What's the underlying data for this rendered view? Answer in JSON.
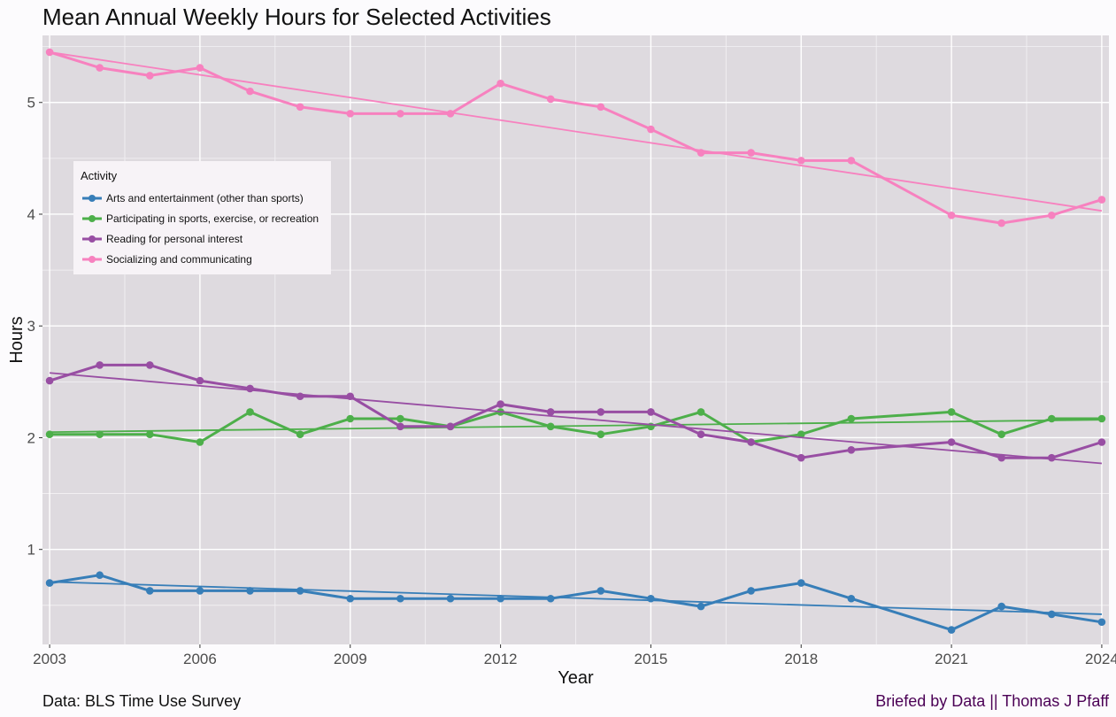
{
  "chart_data": {
    "type": "line",
    "title": "Mean Annual Weekly Hours for Selected Activities",
    "xlabel": "Year",
    "ylabel": "Hours",
    "xlim": [
      2003,
      2024
    ],
    "ylim": [
      0.15,
      5.6
    ],
    "x_ticks": [
      2003,
      2006,
      2009,
      2012,
      2015,
      2018,
      2021,
      2024
    ],
    "y_ticks": [
      1,
      2,
      3,
      4,
      5
    ],
    "grid": true,
    "legend_title": "Activity",
    "legend_position": "top-left",
    "trend_lines": "linear fit per series",
    "series": [
      {
        "name": "Arts and entertainment (other than sports)",
        "color": "#377eb8",
        "points": [
          [
            2003,
            0.7
          ],
          [
            2004,
            0.77
          ],
          [
            2005,
            0.63
          ],
          [
            2006,
            0.63
          ],
          [
            2007,
            0.63
          ],
          [
            2008,
            0.63
          ],
          [
            2009,
            0.56
          ],
          [
            2010,
            0.56
          ],
          [
            2011,
            0.56
          ],
          [
            2012,
            0.56
          ],
          [
            2013,
            0.56
          ],
          [
            2014,
            0.63
          ],
          [
            2015,
            0.56
          ],
          [
            2016,
            0.49
          ],
          [
            2017,
            0.63
          ],
          [
            2018,
            0.7
          ],
          [
            2019,
            0.56
          ],
          [
            2021,
            0.28
          ],
          [
            2022,
            0.49
          ],
          [
            2023,
            0.42
          ],
          [
            2024,
            0.35
          ]
        ],
        "trend": [
          0.71,
          0.42
        ]
      },
      {
        "name": "Participating in sports, exercise, or recreation",
        "color": "#4daf4a",
        "points": [
          [
            2003,
            2.03
          ],
          [
            2004,
            2.03
          ],
          [
            2005,
            2.03
          ],
          [
            2006,
            1.96
          ],
          [
            2007,
            2.23
          ],
          [
            2008,
            2.03
          ],
          [
            2009,
            2.17
          ],
          [
            2010,
            2.17
          ],
          [
            2011,
            2.1
          ],
          [
            2012,
            2.23
          ],
          [
            2013,
            2.1
          ],
          [
            2014,
            2.03
          ],
          [
            2015,
            2.1
          ],
          [
            2016,
            2.23
          ],
          [
            2017,
            1.96
          ],
          [
            2018,
            2.03
          ],
          [
            2019,
            2.17
          ],
          [
            2021,
            2.23
          ],
          [
            2022,
            2.03
          ],
          [
            2023,
            2.17
          ],
          [
            2024,
            2.17
          ]
        ],
        "trend": [
          2.05,
          2.16
        ]
      },
      {
        "name": "Reading for personal interest",
        "color": "#984ea3",
        "points": [
          [
            2003,
            2.51
          ],
          [
            2004,
            2.65
          ],
          [
            2005,
            2.65
          ],
          [
            2006,
            2.51
          ],
          [
            2007,
            2.44
          ],
          [
            2008,
            2.37
          ],
          [
            2009,
            2.37
          ],
          [
            2010,
            2.1
          ],
          [
            2011,
            2.1
          ],
          [
            2012,
            2.3
          ],
          [
            2013,
            2.23
          ],
          [
            2014,
            2.23
          ],
          [
            2015,
            2.23
          ],
          [
            2016,
            2.03
          ],
          [
            2017,
            1.96
          ],
          [
            2018,
            1.82
          ],
          [
            2019,
            1.89
          ],
          [
            2021,
            1.96
          ],
          [
            2022,
            1.82
          ],
          [
            2023,
            1.82
          ],
          [
            2024,
            1.96
          ]
        ],
        "trend": [
          2.58,
          1.77
        ]
      },
      {
        "name": "Socializing and communicating",
        "color": "#f781bf",
        "points": [
          [
            2003,
            5.45
          ],
          [
            2004,
            5.31
          ],
          [
            2005,
            5.24
          ],
          [
            2006,
            5.31
          ],
          [
            2007,
            5.1
          ],
          [
            2008,
            4.96
          ],
          [
            2009,
            4.9
          ],
          [
            2010,
            4.9
          ],
          [
            2011,
            4.9
          ],
          [
            2012,
            5.17
          ],
          [
            2013,
            5.03
          ],
          [
            2014,
            4.96
          ],
          [
            2015,
            4.76
          ],
          [
            2016,
            4.55
          ],
          [
            2017,
            4.55
          ],
          [
            2018,
            4.48
          ],
          [
            2019,
            4.48
          ],
          [
            2021,
            3.99
          ],
          [
            2022,
            3.92
          ],
          [
            2023,
            3.99
          ],
          [
            2024,
            4.13
          ]
        ],
        "trend": [
          5.45,
          4.03
        ]
      }
    ]
  },
  "captions": {
    "source": "Data: BLS Time Use Survey",
    "credit": "Briefed by Data || Thomas J Pfaff",
    "credit_color": "#4b0055"
  }
}
